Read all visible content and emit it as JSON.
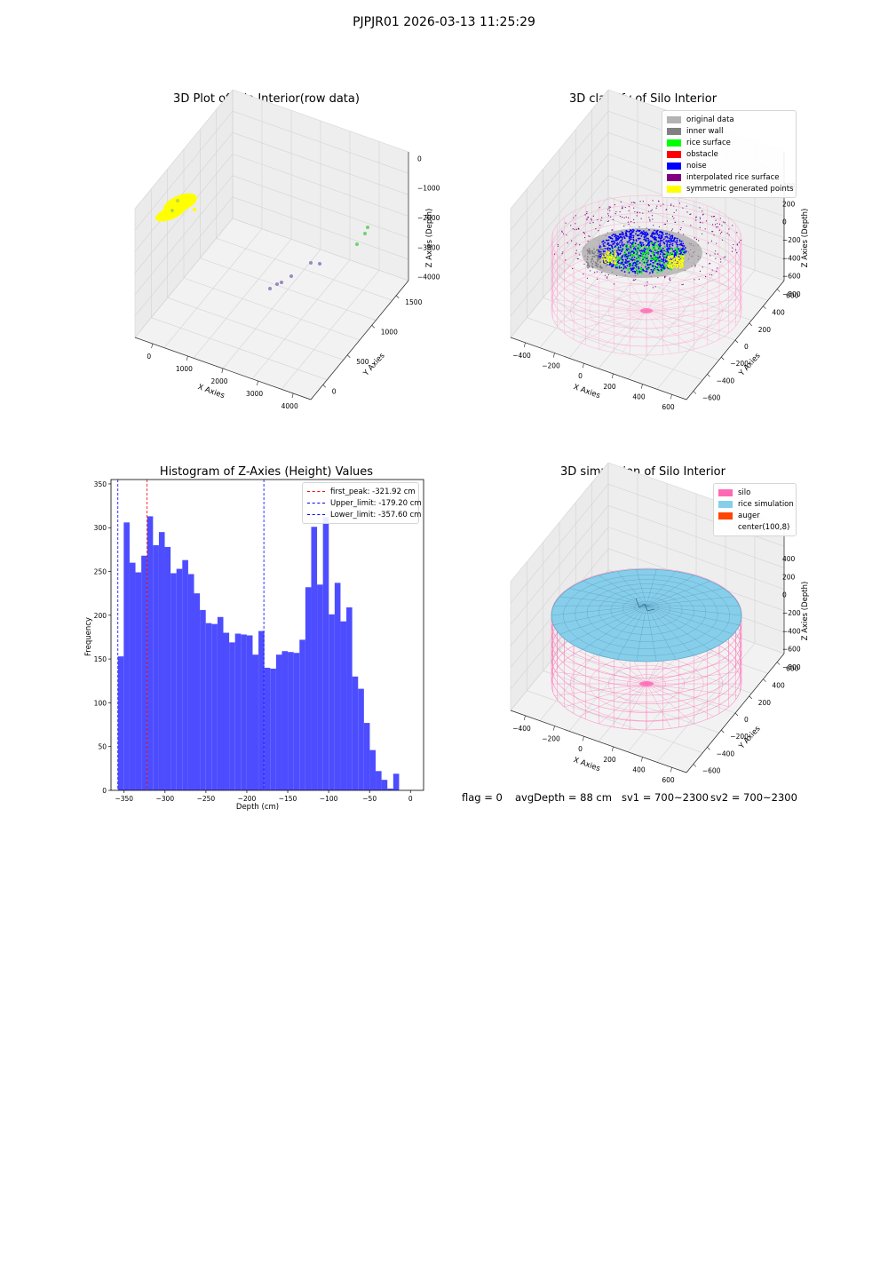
{
  "suptitle": "PJPJR01 2026-03-13 11:25:29",
  "colors": {
    "original": "#b3b3b3",
    "inner_wall": "#808080",
    "rice_surface": "#00ff00",
    "obstacle": "#ff0000",
    "noise": "#0000ff",
    "interpolated": "#800080",
    "symmetric": "#ffff00",
    "silo": "#ff69b4",
    "rice_sim": "#87ceeb",
    "auger": "#ff4500",
    "hist_bar": "#4d4dff"
  },
  "plot1": {
    "title": "3D Plot of Silo Interior(row data)",
    "xlabel": "X Axies",
    "ylabel": "Y Axies",
    "zlabel": "Z Axies (Depth)",
    "xticks": [
      "0",
      "1000",
      "2000",
      "3000",
      "4000"
    ],
    "yticks": [
      "0",
      "500",
      "1000",
      "1500"
    ],
    "zticks": [
      "0",
      "−1000",
      "−2000",
      "−3000",
      "−4000"
    ]
  },
  "plot2": {
    "title": "3D classify of Silo Interior",
    "xlabel": "X Axies",
    "ylabel": "Y Axies",
    "zlabel": "Z Axies (Depth)",
    "xticks": [
      "−400",
      "−200",
      "0",
      "200",
      "400",
      "600"
    ],
    "yticks": [
      "−600",
      "−400",
      "−200",
      "0",
      "200",
      "400",
      "600"
    ],
    "zticks": [
      "400",
      "200",
      "0",
      "−200",
      "−400",
      "−600",
      "−800"
    ],
    "legend": [
      {
        "label": "original data",
        "color": "#b3b3b3"
      },
      {
        "label": "inner wall",
        "color": "#808080"
      },
      {
        "label": "rice surface",
        "color": "#00ff00"
      },
      {
        "label": "obstacle",
        "color": "#ff0000"
      },
      {
        "label": "noise",
        "color": "#0000ff"
      },
      {
        "label": "interpolated rice surface",
        "color": "#800080"
      },
      {
        "label": "symmetric generated points",
        "color": "#ffff00"
      }
    ]
  },
  "plot4": {
    "title": "3D simulation of Silo Interior",
    "xlabel": "X Axies",
    "ylabel": "Y Axies",
    "zlabel": "Z Axies (Depth)",
    "xticks": [
      "−400",
      "−200",
      "0",
      "200",
      "400",
      "600"
    ],
    "yticks": [
      "−600",
      "−400",
      "−200",
      "0",
      "200",
      "400",
      "600"
    ],
    "zticks": [
      "400",
      "200",
      "0",
      "−200",
      "−400",
      "−600",
      "−800"
    ],
    "legend": [
      {
        "label": "silo",
        "color": "#ff69b4"
      },
      {
        "label": "rice simulation",
        "color": "#87ceeb"
      },
      {
        "label": "auger",
        "color": "#ff4500"
      },
      {
        "label": "center(100,8)",
        "color": ""
      }
    ]
  },
  "status": {
    "flag": "flag = 0",
    "avgDepth": "avgDepth = 88 cm",
    "sv1": "sv1 = 700~2300",
    "sv2": "sv2 = 700~2300"
  },
  "chart_data": [
    {
      "type": "scatter",
      "title": "3D Plot of Silo Interior(row data)",
      "xlabel": "X Axies",
      "ylabel": "Y Axies",
      "zlabel": "Z Axies (Depth)",
      "xlim": [
        -500,
        4500
      ],
      "ylim": [
        -300,
        1800
      ],
      "zlim": [
        -4500,
        200
      ]
    },
    {
      "type": "scatter",
      "title": "3D classify of Silo Interior",
      "xlabel": "X Axies",
      "ylabel": "Y Axies",
      "zlabel": "Z Axies (Depth)",
      "xlim": [
        -500,
        700
      ],
      "ylim": [
        -650,
        650
      ],
      "zlim": [
        -900,
        450
      ]
    },
    {
      "type": "bar",
      "title": "Histogram of Z-Axies (Height) Values",
      "xlabel": "Depth (cm)",
      "ylabel": "Frequency",
      "xlim": [
        -366,
        16
      ],
      "ylim": [
        0,
        355
      ],
      "xticks": [
        -350,
        -300,
        -250,
        -200,
        -150,
        -100,
        -50,
        0
      ],
      "yticks": [
        0,
        50,
        100,
        150,
        200,
        250,
        300,
        350
      ],
      "x_start": -357.6,
      "bin_width": 7.16,
      "values": [
        153,
        306,
        260,
        249,
        268,
        313,
        280,
        295,
        278,
        248,
        253,
        263,
        247,
        225,
        206,
        191,
        190,
        198,
        180,
        169,
        179,
        178,
        177,
        155,
        182,
        140,
        139,
        155,
        159,
        158,
        157,
        172,
        232,
        301,
        235,
        312,
        201,
        237,
        193,
        209,
        130,
        116,
        77,
        46,
        22,
        12,
        2,
        19
      ],
      "vlines": [
        {
          "label": "first_peak: -321.92 cm",
          "x": -321.92,
          "color": "#ff0000"
        },
        {
          "label": "Upper_limit: -179.20 cm",
          "x": -179.2,
          "color": "#0000ff"
        },
        {
          "label": "Lower_limit: -357.60 cm",
          "x": -357.6,
          "color": "#0000ff"
        }
      ]
    },
    {
      "type": "surface",
      "title": "3D simulation of Silo Interior",
      "xlabel": "X Axies",
      "ylabel": "Y Axies",
      "zlabel": "Z Axies (Depth)",
      "xlim": [
        -500,
        700
      ],
      "ylim": [
        -650,
        650
      ],
      "zlim": [
        -900,
        450
      ]
    }
  ]
}
